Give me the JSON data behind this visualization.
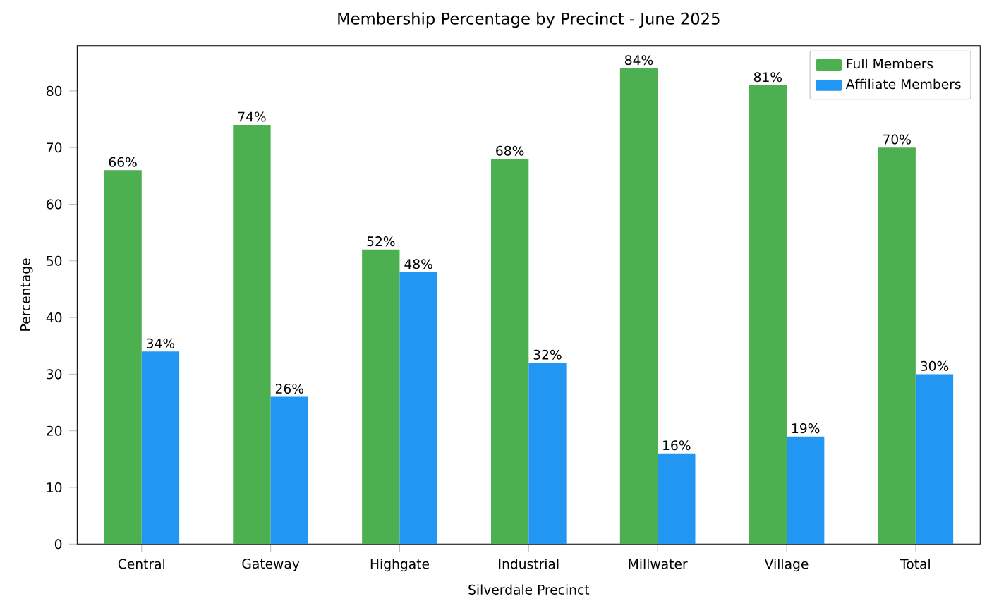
{
  "chart_data": {
    "type": "bar",
    "title": "Membership Percentage by Precinct - June 2025",
    "xlabel": "Silverdale Precinct",
    "ylabel": "Percentage",
    "categories": [
      "Central",
      "Gateway",
      "Highgate",
      "Industrial",
      "Millwater",
      "Village",
      "Total"
    ],
    "series": [
      {
        "name": "Full Members",
        "color": "#4caf50",
        "values": [
          66,
          74,
          52,
          68,
          84,
          81,
          70
        ],
        "value_labels": [
          "66%",
          "74%",
          "52%",
          "68%",
          "84%",
          "81%",
          "70%"
        ]
      },
      {
        "name": "Affiliate Members",
        "color": "#2196f3",
        "values": [
          34,
          26,
          48,
          32,
          16,
          19,
          30
        ],
        "value_labels": [
          "34%",
          "26%",
          "48%",
          "32%",
          "16%",
          "19%",
          "30%"
        ]
      }
    ],
    "ylim": [
      0,
      88
    ],
    "yticks": [
      0,
      10,
      20,
      30,
      40,
      50,
      60,
      70,
      80
    ],
    "legend": "top right",
    "grid": false
  }
}
